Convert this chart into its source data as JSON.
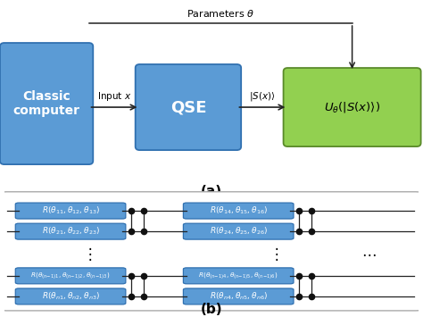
{
  "fig_width": 4.74,
  "fig_height": 3.55,
  "dpi": 100,
  "bg_color": "#ffffff",
  "box_color_blue": "#5b9bd5",
  "box_color_green": "#92d050",
  "line_color": "#222222",
  "dot_color": "#111111",
  "panel_a_label": "(a)",
  "panel_b_label": "(b)",
  "classic_computer_text": "Classic\ncomputer",
  "qse_text": "QSE",
  "u_theta_text": "$U_{\\theta}(|S(x)\\rangle)$",
  "params_label": "Parameters $\\theta$",
  "input_label": "Input $x$",
  "state_label": "$|S(x)\\rangle$",
  "r11_text": "$R(\\theta_{11},\\theta_{12},\\theta_{13})$",
  "r21_text": "$R(\\theta_{21},\\theta_{22},\\theta_{23})$",
  "r14_text": "$R(\\theta_{14},\\theta_{15},\\theta_{16})$",
  "r24_text": "$R(\\theta_{24},\\theta_{25},\\theta_{26})$",
  "rn1_text": "$R(\\theta_{(n\\!-\\!1)1},\\theta_{(n\\!-\\!1)2},\\theta_{(n\\!-\\!1)3})$",
  "rn2_text": "$R(\\theta_{n1},\\theta_{n2},\\theta_{n3})$",
  "rn4_text": "$R(\\theta_{(n\\!-\\!1)4},\\theta_{(n\\!-\\!1)5},\\theta_{(n\\!-\\!1)6})$",
  "rn5_text": "$R(\\theta_{n4},\\theta_{n5},\\theta_{n6})$",
  "vdots": "$\\vdots$",
  "hdots": "$\\cdots$"
}
